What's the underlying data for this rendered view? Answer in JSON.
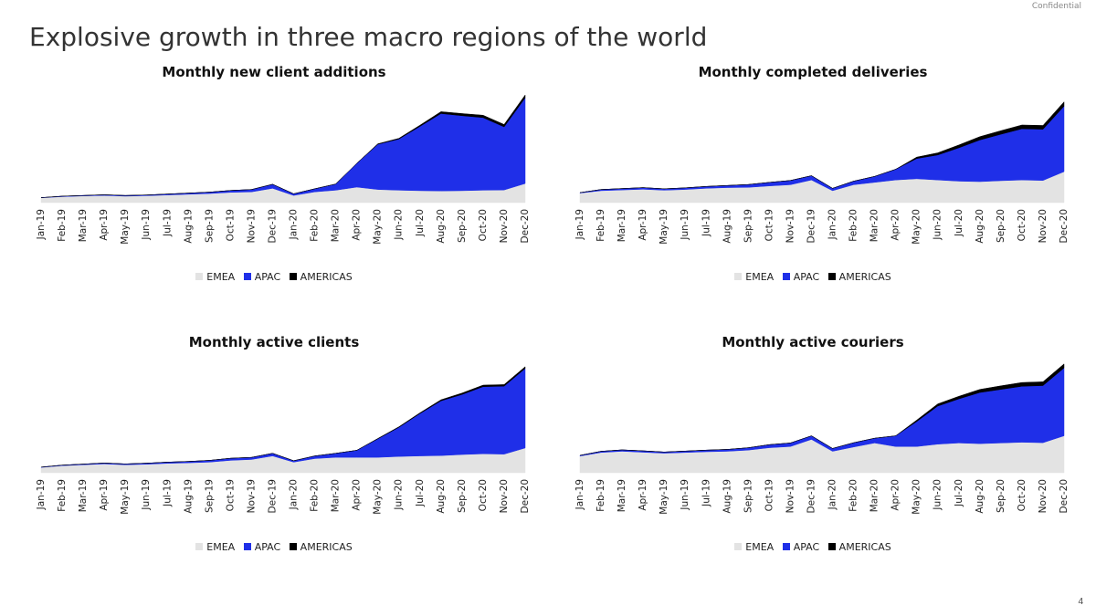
{
  "header": {
    "confidential_label": "Confidential",
    "title": "Explosive growth in three macro regions of the world"
  },
  "footer": {
    "page_number": "4"
  },
  "colors": {
    "EMEA": "#e3e3e3",
    "APAC": "#1f2fe8",
    "AMERICAS": "#000000"
  },
  "legend_labels": [
    "EMEA",
    "APAC",
    "AMERICAS"
  ],
  "chart_data": [
    {
      "type": "area",
      "stacked": true,
      "title": "Monthly new client additions",
      "categories": [
        "Jan-19",
        "Feb-19",
        "Mar-19",
        "Apr-19",
        "May-19",
        "Jun-19",
        "Jul-19",
        "Aug-19",
        "Sep-19",
        "Oct-19",
        "Nov-19",
        "Dec-19",
        "Jan-20",
        "Feb-20",
        "Mar-20",
        "Apr-20",
        "May-20",
        "Jun-20",
        "Jul-20",
        "Aug-20",
        "Sep-20",
        "Oct-20",
        "Nov-20",
        "Dec-20"
      ],
      "series": [
        {
          "name": "EMEA",
          "values": [
            2,
            2.5,
            2.8,
            3,
            2.7,
            2.9,
            3.2,
            3.5,
            3.8,
            4.3,
            4.5,
            6,
            3,
            4.5,
            5.2,
            6.5,
            5.5,
            5.2,
            5.0,
            4.9,
            5.0,
            5.2,
            5.3,
            8.0
          ]
        },
        {
          "name": "APAC",
          "values": [
            0.1,
            0.2,
            0.2,
            0.3,
            0.3,
            0.3,
            0.4,
            0.5,
            0.6,
            0.8,
            1,
            1.7,
            0.7,
            1.3,
            2.6,
            10,
            19,
            21.5,
            27,
            32.5,
            31.5,
            30.5,
            26.5,
            36
          ]
        },
        {
          "name": "AMERICAS",
          "values": [
            0,
            0,
            0,
            0,
            0,
            0,
            0,
            0,
            0,
            0,
            0,
            0,
            0,
            0,
            0,
            0,
            0.2,
            0.3,
            0.5,
            0.8,
            0.9,
            1.0,
            1.0,
            1.2
          ]
        }
      ],
      "ylim": [
        0,
        46
      ],
      "grid": false,
      "legend": "bottom"
    },
    {
      "type": "area",
      "stacked": true,
      "title": "Monthly completed deliveries",
      "categories": [
        "Jan-19",
        "Feb-19",
        "Mar-19",
        "Apr-19",
        "May-19",
        "Jun-19",
        "Jul-19",
        "Aug-19",
        "Sep-19",
        "Oct-19",
        "Nov-19",
        "Dec-19",
        "Jan-20",
        "Feb-20",
        "Mar-20",
        "Apr-20",
        "May-20",
        "Jun-20",
        "Jul-20",
        "Aug-20",
        "Sep-20",
        "Oct-20",
        "Nov-20",
        "Dec-20"
      ],
      "series": [
        {
          "name": "EMEA",
          "values": [
            4,
            5,
            5.3,
            5.6,
            5.2,
            5.5,
            6,
            6.3,
            6.4,
            7,
            7.5,
            9.5,
            5,
            7.5,
            8.5,
            9.5,
            10,
            9.5,
            9,
            8.8,
            9.2,
            9.5,
            9.3,
            13
          ]
        },
        {
          "name": "APAC",
          "values": [
            0.2,
            0.5,
            0.6,
            0.7,
            0.6,
            0.7,
            0.8,
            0.9,
            1.2,
            1.5,
            1.8,
            1.8,
            1,
            1.5,
            2.5,
            4.5,
            8.5,
            10.5,
            14,
            17.5,
            19.5,
            21.5,
            21.5,
            27.5
          ]
        },
        {
          "name": "AMERICAS",
          "values": [
            0,
            0,
            0,
            0,
            0,
            0,
            0,
            0,
            0,
            0,
            0,
            0,
            0,
            0,
            0,
            0,
            0.6,
            0.9,
            1.2,
            1.4,
            1.5,
            1.6,
            1.6,
            1.8
          ]
        }
      ],
      "ylim": [
        0,
        46
      ],
      "grid": false,
      "legend": "bottom"
    },
    {
      "type": "area",
      "stacked": true,
      "title": "Monthly active clients",
      "categories": [
        "Jan-19",
        "Feb-19",
        "Mar-19",
        "Apr-19",
        "May-19",
        "Jun-19",
        "Jul-19",
        "Aug-19",
        "Sep-19",
        "Oct-19",
        "Nov-19",
        "Dec-19",
        "Jan-20",
        "Feb-20",
        "Mar-20",
        "Apr-20",
        "May-20",
        "Jun-20",
        "Jul-20",
        "Aug-20",
        "Sep-20",
        "Oct-20",
        "Nov-20",
        "Dec-20"
      ],
      "series": [
        {
          "name": "EMEA",
          "values": [
            3,
            4,
            4.5,
            5,
            4.5,
            4.8,
            5.3,
            5.6,
            6,
            7,
            7.5,
            9.5,
            6,
            8,
            8.7,
            8.7,
            8.7,
            9.2,
            9.5,
            9.7,
            10.3,
            10.7,
            10.5,
            14
          ]
        },
        {
          "name": "APAC",
          "values": [
            0.2,
            0.3,
            0.4,
            0.5,
            0.5,
            0.6,
            0.7,
            0.8,
            1,
            1.2,
            1.2,
            1.5,
            0.8,
            1.5,
            2.3,
            4,
            10.5,
            16.5,
            24,
            31,
            34,
            38,
            38.5,
            45
          ]
        },
        {
          "name": "AMERICAS",
          "values": [
            0,
            0,
            0,
            0,
            0,
            0,
            0,
            0,
            0,
            0,
            0,
            0,
            0,
            0,
            0,
            0,
            0.2,
            0.3,
            0.4,
            0.6,
            0.8,
            0.9,
            0.9,
            1.0
          ]
        }
      ],
      "ylim": [
        0,
        62
      ],
      "grid": false,
      "legend": "bottom"
    },
    {
      "type": "area",
      "stacked": true,
      "title": "Monthly active couriers",
      "categories": [
        "Jan-19",
        "Feb-19",
        "Mar-19",
        "Apr-19",
        "May-19",
        "Jun-19",
        "Jul-19",
        "Aug-19",
        "Sep-19",
        "Oct-19",
        "Nov-19",
        "Dec-19",
        "Jan-20",
        "Feb-20",
        "Mar-20",
        "Apr-20",
        "May-20",
        "Jun-20",
        "Jul-20",
        "Aug-20",
        "Sep-20",
        "Oct-20",
        "Nov-20",
        "Dec-20"
      ],
      "series": [
        {
          "name": "EMEA",
          "values": [
            7,
            8.5,
            9,
            8.6,
            8.2,
            8.5,
            8.8,
            9,
            9.5,
            10.5,
            11,
            14,
            9,
            10.8,
            12.5,
            11,
            11,
            12,
            12.5,
            12.2,
            12.5,
            12.8,
            12.6,
            15.5
          ]
        },
        {
          "name": "APAC",
          "values": [
            0.3,
            0.5,
            0.6,
            0.6,
            0.5,
            0.6,
            0.7,
            0.8,
            1,
            1.3,
            1.5,
            1.5,
            1.2,
            1.8,
            2,
            4.5,
            10.5,
            16,
            18.5,
            21.5,
            22.5,
            23.5,
            24,
            28.5
          ]
        },
        {
          "name": "AMERICAS",
          "values": [
            0,
            0,
            0,
            0,
            0,
            0,
            0,
            0,
            0,
            0,
            0,
            0,
            0,
            0,
            0,
            0,
            0.6,
            0.9,
            1.1,
            1.3,
            1.5,
            1.6,
            1.6,
            1.7
          ]
        }
      ],
      "ylim": [
        0,
        46
      ],
      "grid": false,
      "legend": "bottom"
    }
  ]
}
